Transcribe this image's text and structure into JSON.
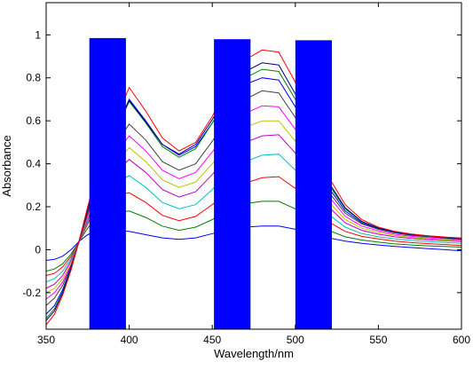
{
  "chart_data": {
    "type": "line",
    "title": "",
    "xlabel": "Wavelength/nm",
    "ylabel": "Absorbance",
    "xlim": [
      350,
      600
    ],
    "ylim": [
      -0.37,
      1.15
    ],
    "xticks": [
      350,
      400,
      450,
      500,
      550,
      600
    ],
    "yticks": [
      -0.2,
      0,
      0.2,
      0.4,
      0.6,
      0.8,
      1
    ],
    "ytick_labels": [
      "-0.2",
      "0",
      "0.2",
      "0.4",
      "0.6",
      "0.8",
      "1"
    ],
    "grid": false,
    "legend": "none",
    "colors": {
      "background": "#ffffff",
      "axes": "#000000",
      "bars": "#0000ff"
    },
    "bars": [
      {
        "x_start": 376,
        "x_end": 398,
        "top": 0.985
      },
      {
        "x_start": 451,
        "x_end": 473,
        "top": 0.98
      },
      {
        "x_start": 500,
        "x_end": 522,
        "top": 0.975
      }
    ],
    "x": [
      350,
      355,
      360,
      365,
      370,
      375,
      380,
      390,
      400,
      410,
      420,
      430,
      440,
      450,
      460,
      470,
      480,
      490,
      500,
      510,
      520,
      530,
      540,
      550,
      560,
      570,
      580,
      590,
      600
    ],
    "series": [
      {
        "color": "#0000ff",
        "values": [
          -0.05,
          -0.045,
          -0.03,
          0.0,
          0.04,
          0.07,
          0.085,
          0.09,
          0.085,
          0.07,
          0.055,
          0.048,
          0.055,
          0.075,
          0.095,
          0.105,
          0.11,
          0.11,
          0.095,
          0.075,
          0.055,
          0.04,
          0.03,
          0.022,
          0.015,
          0.01,
          0.005,
          0.0,
          -0.005
        ]
      },
      {
        "color": "#008000",
        "values": [
          -0.1,
          -0.09,
          -0.065,
          -0.02,
          0.04,
          0.1,
          0.15,
          0.17,
          0.18,
          0.15,
          0.11,
          0.09,
          0.105,
          0.14,
          0.19,
          0.215,
          0.225,
          0.225,
          0.19,
          0.14,
          0.09,
          0.06,
          0.045,
          0.035,
          0.027,
          0.022,
          0.018,
          0.015,
          0.012
        ]
      },
      {
        "color": "#ff0000",
        "values": [
          -0.12,
          -0.11,
          -0.08,
          -0.03,
          0.04,
          0.12,
          0.2,
          0.25,
          0.265,
          0.22,
          0.16,
          0.135,
          0.155,
          0.21,
          0.27,
          0.31,
          0.335,
          0.34,
          0.285,
          0.205,
          0.13,
          0.085,
          0.062,
          0.05,
          0.04,
          0.033,
          0.028,
          0.024,
          0.02
        ]
      },
      {
        "color": "#00bfbf",
        "values": [
          -0.15,
          -0.135,
          -0.1,
          -0.04,
          0.04,
          0.13,
          0.22,
          0.3,
          0.345,
          0.29,
          0.22,
          0.19,
          0.21,
          0.28,
          0.36,
          0.41,
          0.44,
          0.445,
          0.37,
          0.27,
          0.165,
          0.105,
          0.075,
          0.06,
          0.05,
          0.043,
          0.038,
          0.034,
          0.03
        ]
      },
      {
        "color": "#bf00bf",
        "values": [
          -0.18,
          -0.16,
          -0.12,
          -0.05,
          0.04,
          0.14,
          0.24,
          0.35,
          0.42,
          0.36,
          0.28,
          0.245,
          0.27,
          0.35,
          0.44,
          0.5,
          0.53,
          0.535,
          0.45,
          0.33,
          0.2,
          0.125,
          0.09,
          0.072,
          0.06,
          0.052,
          0.046,
          0.042,
          0.038
        ]
      },
      {
        "color": "#bfbf00",
        "values": [
          -0.2,
          -0.18,
          -0.135,
          -0.06,
          0.04,
          0.15,
          0.26,
          0.39,
          0.475,
          0.41,
          0.325,
          0.29,
          0.315,
          0.4,
          0.5,
          0.57,
          0.6,
          0.6,
          0.505,
          0.37,
          0.225,
          0.14,
          0.1,
          0.08,
          0.066,
          0.057,
          0.05,
          0.045,
          0.041
        ]
      },
      {
        "color": "#ff00ff",
        "values": [
          -0.23,
          -0.2,
          -0.15,
          -0.07,
          0.04,
          0.16,
          0.28,
          0.43,
          0.53,
          0.46,
          0.37,
          0.33,
          0.36,
          0.455,
          0.56,
          0.635,
          0.67,
          0.665,
          0.56,
          0.41,
          0.25,
          0.155,
          0.11,
          0.088,
          0.072,
          0.062,
          0.055,
          0.05,
          0.045
        ]
      },
      {
        "color": "#404040",
        "values": [
          -0.26,
          -0.225,
          -0.165,
          -0.075,
          0.04,
          0.17,
          0.3,
          0.47,
          0.585,
          0.51,
          0.41,
          0.37,
          0.4,
          0.505,
          0.62,
          0.7,
          0.74,
          0.73,
          0.615,
          0.45,
          0.27,
          0.17,
          0.12,
          0.095,
          0.078,
          0.067,
          0.06,
          0.054,
          0.049
        ]
      },
      {
        "color": "#0000ff",
        "values": [
          -0.3,
          -0.26,
          -0.185,
          -0.08,
          0.045,
          0.18,
          0.32,
          0.52,
          0.7,
          0.6,
          0.49,
          0.44,
          0.48,
          0.59,
          0.7,
          0.77,
          0.8,
          0.79,
          0.665,
          0.485,
          0.29,
          0.18,
          0.125,
          0.098,
          0.08,
          0.069,
          0.062,
          0.056,
          0.051
        ]
      },
      {
        "color": "#008000",
        "values": [
          -0.32,
          -0.275,
          -0.195,
          -0.085,
          0.045,
          0.185,
          0.325,
          0.525,
          0.69,
          0.59,
          0.48,
          0.43,
          0.47,
          0.59,
          0.72,
          0.8,
          0.84,
          0.83,
          0.7,
          0.51,
          0.305,
          0.19,
          0.13,
          0.1,
          0.082,
          0.07,
          0.063,
          0.057,
          0.052
        ]
      },
      {
        "color": "#00008b",
        "values": [
          -0.33,
          -0.285,
          -0.2,
          -0.09,
          0.045,
          0.19,
          0.33,
          0.53,
          0.695,
          0.595,
          0.49,
          0.445,
          0.49,
          0.605,
          0.745,
          0.83,
          0.87,
          0.86,
          0.725,
          0.53,
          0.315,
          0.195,
          0.132,
          0.101,
          0.083,
          0.071,
          0.064,
          0.058,
          0.053
        ]
      },
      {
        "color": "#ff0000",
        "values": [
          -0.35,
          -0.3,
          -0.21,
          -0.095,
          0.045,
          0.2,
          0.35,
          0.57,
          0.755,
          0.645,
          0.52,
          0.46,
          0.5,
          0.62,
          0.78,
          0.885,
          0.93,
          0.92,
          0.78,
          0.57,
          0.34,
          0.21,
          0.14,
          0.105,
          0.085,
          0.073,
          0.065,
          0.059,
          0.054
        ]
      }
    ]
  }
}
